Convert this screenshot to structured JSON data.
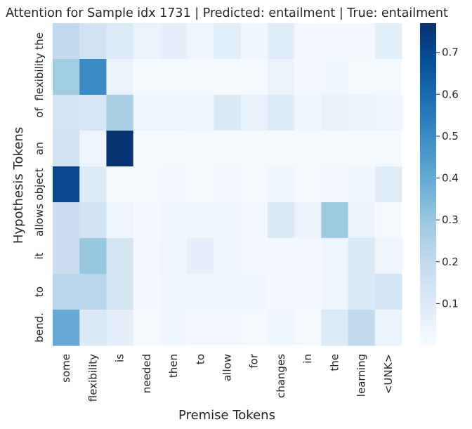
{
  "chart_data": {
    "type": "heatmap",
    "title": "Attention for Sample idx 1731 | Predicted: entailment | True: entailment",
    "xlabel": "Premise Tokens",
    "ylabel": "Hypothesis Tokens",
    "x": [
      "some",
      "flexibility",
      "is",
      "needed",
      "then",
      "to",
      "allow",
      "for",
      "changes",
      "in",
      "the",
      "learning",
      "<UNK>"
    ],
    "y": [
      "the",
      "flexibility",
      "of",
      "an",
      "object",
      "allows",
      "it",
      "to",
      "bend."
    ],
    "values": [
      [
        0.2,
        0.15,
        0.1,
        0.05,
        0.07,
        0.04,
        0.08,
        0.03,
        0.09,
        0.02,
        0.02,
        0.02,
        0.08
      ],
      [
        0.28,
        0.5,
        0.05,
        0.01,
        0.01,
        0.01,
        0.01,
        0.01,
        0.05,
        0.02,
        0.03,
        0.01,
        0.01
      ],
      [
        0.14,
        0.12,
        0.26,
        0.04,
        0.04,
        0.03,
        0.11,
        0.06,
        0.1,
        0.03,
        0.06,
        0.05,
        0.04
      ],
      [
        0.15,
        0.04,
        0.76,
        0.01,
        0.01,
        0.01,
        0.01,
        0.01,
        0.01,
        0.01,
        0.01,
        0.01,
        0.01
      ],
      [
        0.7,
        0.1,
        0.01,
        0.01,
        0.02,
        0.01,
        0.02,
        0.01,
        0.03,
        0.01,
        0.02,
        0.03,
        0.09
      ],
      [
        0.17,
        0.15,
        0.04,
        0.02,
        0.03,
        0.03,
        0.03,
        0.02,
        0.11,
        0.05,
        0.29,
        0.05,
        0.01
      ],
      [
        0.17,
        0.3,
        0.14,
        0.02,
        0.04,
        0.07,
        0.03,
        0.02,
        0.02,
        0.02,
        0.04,
        0.11,
        0.04
      ],
      [
        0.22,
        0.22,
        0.14,
        0.02,
        0.03,
        0.03,
        0.04,
        0.03,
        0.02,
        0.02,
        0.04,
        0.11,
        0.13
      ],
      [
        0.4,
        0.11,
        0.07,
        0.01,
        0.03,
        0.02,
        0.02,
        0.01,
        0.03,
        0.01,
        0.1,
        0.2,
        0.05
      ]
    ],
    "colormap": "Blues",
    "vmin": 0.0,
    "vmax": 0.77,
    "colorbar_ticks": [
      "0.1",
      "0.2",
      "0.3",
      "0.4",
      "0.5",
      "0.6",
      "0.7"
    ],
    "grid": false
  }
}
